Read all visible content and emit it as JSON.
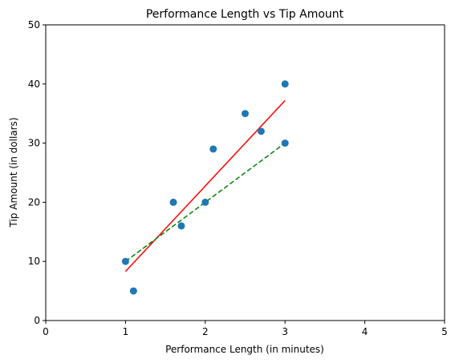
{
  "chart_data": {
    "type": "scatter",
    "title": "Performance Length vs Tip Amount",
    "xlabel": "Performance Length (in minutes)",
    "ylabel": "Tip Amount (in dollars)",
    "xlim": [
      0,
      5
    ],
    "ylim": [
      0,
      50
    ],
    "xticks": [
      "0",
      "1",
      "2",
      "3",
      "4",
      "5"
    ],
    "yticks": [
      "0",
      "10",
      "20",
      "30",
      "40",
      "50"
    ],
    "grid": false,
    "legend": "none",
    "points": {
      "color": "#1f77b4",
      "x": [
        1.0,
        1.1,
        1.6,
        1.7,
        2.0,
        2.1,
        2.5,
        2.7,
        3.0,
        3.0
      ],
      "y": [
        10,
        5,
        20,
        16,
        20,
        29,
        35,
        32,
        40,
        30
      ]
    },
    "lines": [
      {
        "style": "solid",
        "color": "#ff0000",
        "x": [
          1.0,
          3.0
        ],
        "y": [
          8.3,
          37.2
        ]
      },
      {
        "style": "dashed",
        "color": "#008000",
        "x": [
          1.0,
          3.0
        ],
        "y": [
          10,
          30
        ]
      }
    ]
  }
}
